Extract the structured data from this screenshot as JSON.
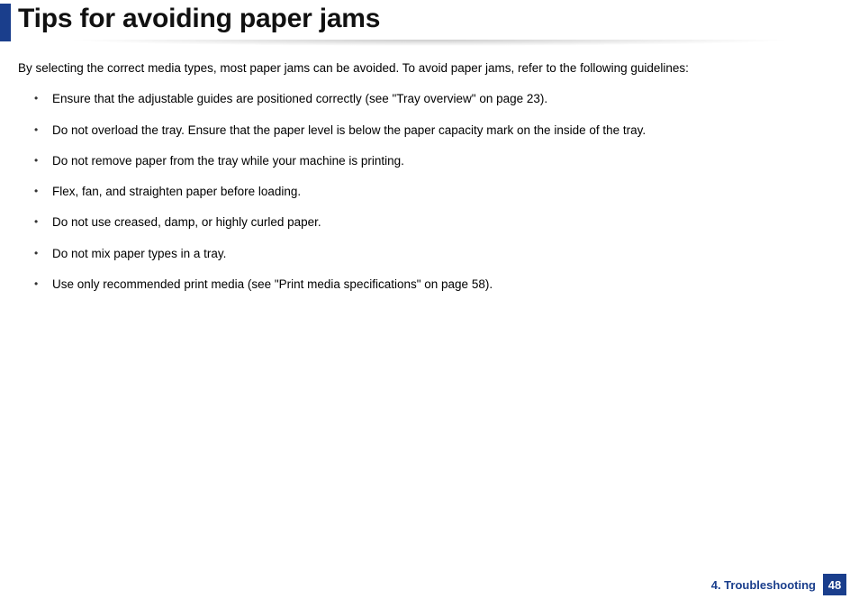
{
  "title": "Tips for avoiding paper jams",
  "intro": "By selecting the correct media types, most paper jams can be avoided. To avoid paper jams, refer to the following guidelines:",
  "guidelines": [
    "Ensure that the adjustable guides are positioned correctly (see \"Tray overview\" on page 23).",
    "Do not overload the tray. Ensure that the paper level is below the paper capacity mark on the inside of the tray.",
    "Do not remove paper from the tray while your machine is printing.",
    "Flex, fan, and straighten paper before loading.",
    "Do not use creased, damp, or highly curled paper.",
    "Do not mix paper types in a tray.",
    "Use only recommended print media (see \"Print media specifications\" on page 58)."
  ],
  "footer": {
    "section": "4. Troubleshooting",
    "page": "48"
  },
  "colors": {
    "accent": "#1a3e8c",
    "text": "#000000",
    "background": "#ffffff"
  }
}
